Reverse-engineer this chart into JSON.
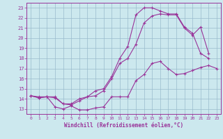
{
  "xlabel": "Windchill (Refroidissement éolien,°C)",
  "bg_color": "#cce8ee",
  "line_color": "#993399",
  "grid_color": "#99bbcc",
  "xlim": [
    -0.5,
    23.5
  ],
  "ylim": [
    12.5,
    23.5
  ],
  "yticks": [
    13,
    14,
    15,
    16,
    17,
    18,
    19,
    20,
    21,
    22,
    23
  ],
  "xticks": [
    0,
    1,
    2,
    3,
    4,
    5,
    6,
    7,
    8,
    9,
    10,
    11,
    12,
    13,
    14,
    15,
    16,
    17,
    18,
    19,
    20,
    21,
    22,
    23
  ],
  "line1_x": [
    0,
    1,
    2,
    3,
    4,
    5,
    6,
    7,
    8,
    9,
    10,
    11,
    12,
    13,
    14,
    15,
    16,
    17,
    18,
    19,
    20,
    21,
    22,
    23
  ],
  "line1_y": [
    14.3,
    14.1,
    14.2,
    13.2,
    13.0,
    13.3,
    12.9,
    12.9,
    13.1,
    13.2,
    14.2,
    14.2,
    14.2,
    15.8,
    16.4,
    17.5,
    17.7,
    17.0,
    16.4,
    16.5,
    16.8,
    17.1,
    17.3,
    17.0
  ],
  "line2_x": [
    0,
    1,
    2,
    3,
    4,
    5,
    6,
    7,
    8,
    9,
    10,
    11,
    12,
    13,
    14,
    15,
    16,
    17,
    18,
    19,
    20,
    21,
    22
  ],
  "line2_y": [
    14.3,
    14.1,
    14.2,
    14.1,
    13.5,
    13.4,
    13.8,
    14.2,
    14.3,
    14.8,
    16.0,
    17.5,
    18.0,
    19.4,
    21.5,
    22.2,
    22.4,
    22.3,
    22.3,
    21.0,
    20.3,
    21.1,
    18.5
  ],
  "line3_x": [
    0,
    1,
    2,
    3,
    4,
    5,
    6,
    7,
    8,
    9,
    10,
    11,
    12,
    13,
    14,
    15,
    16,
    17,
    18,
    19,
    20,
    21,
    22
  ],
  "line3_y": [
    14.3,
    14.2,
    14.2,
    14.2,
    13.5,
    13.5,
    14.0,
    14.2,
    14.8,
    15.0,
    16.2,
    18.0,
    19.2,
    22.3,
    23.0,
    23.0,
    22.7,
    22.4,
    22.4,
    21.1,
    20.5,
    18.5,
    18.0
  ]
}
